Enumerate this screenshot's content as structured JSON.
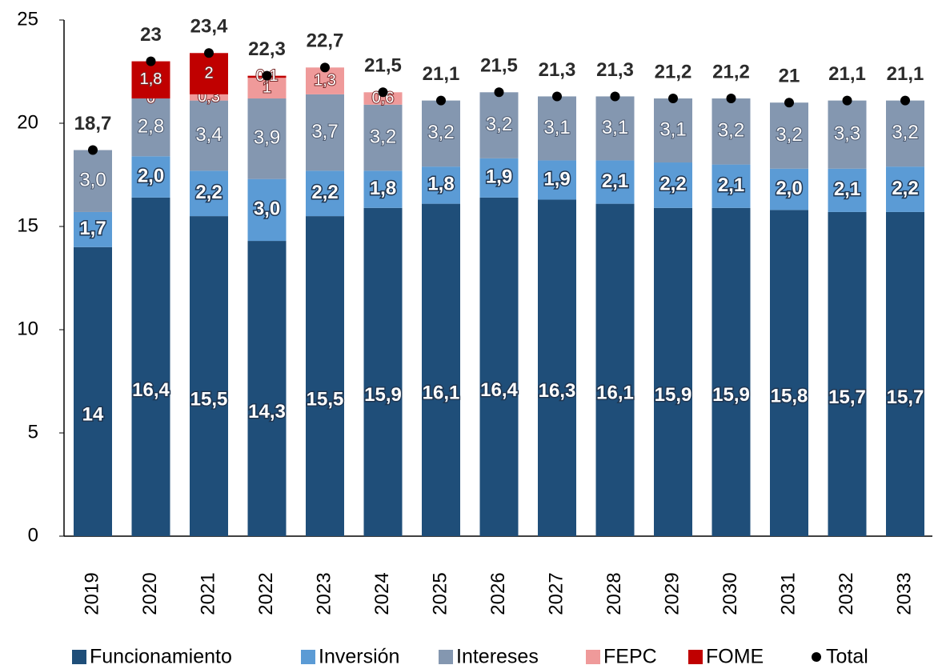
{
  "chart_data": {
    "type": "bar",
    "stacked": true,
    "categories": [
      "2019",
      "2020",
      "2021",
      "2022",
      "2023",
      "2024",
      "2025",
      "2026",
      "2027",
      "2028",
      "2029",
      "2030",
      "2031",
      "2032",
      "2033"
    ],
    "series": [
      {
        "name": "Funcionamiento",
        "color": "#1f4e79",
        "values": [
          14,
          16.4,
          15.5,
          14.3,
          15.5,
          15.9,
          16.1,
          16.4,
          16.3,
          16.1,
          15.9,
          15.9,
          15.8,
          15.7,
          15.7
        ],
        "value_labels": [
          "14",
          "16,4",
          "15,5",
          "14,3",
          "15,5",
          "15,9",
          "16,1",
          "16,4",
          "16,3",
          "16,1",
          "15,9",
          "15,9",
          "15,8",
          "15,7",
          "15,7"
        ]
      },
      {
        "name": "Inversión",
        "color": "#5b9bd5",
        "values": [
          1.7,
          2.0,
          2.2,
          3.0,
          2.2,
          1.8,
          1.8,
          1.9,
          1.9,
          2.1,
          2.2,
          2.1,
          2.0,
          2.1,
          2.2
        ],
        "value_labels": [
          "1,7",
          "2,0",
          "2,2",
          "3,0",
          "2,2",
          "1,8",
          "1,8",
          "1,9",
          "1,9",
          "2,1",
          "2,2",
          "2,1",
          "2,0",
          "2,1",
          "2,2"
        ]
      },
      {
        "name": "Intereses",
        "color": "#8497b0",
        "values": [
          3.0,
          2.8,
          3.4,
          3.9,
          3.7,
          3.2,
          3.2,
          3.2,
          3.1,
          3.1,
          3.1,
          3.2,
          3.2,
          3.3,
          3.2
        ],
        "value_labels": [
          "3,0",
          "2,8",
          "3,4",
          "3,9",
          "3,7",
          "3,2",
          "3,2",
          "3,2",
          "3,1",
          "3,1",
          "3,1",
          "3,2",
          "3,2",
          "3,3",
          "3,2"
        ]
      },
      {
        "name": "FEPC",
        "color": "#ef9a9a",
        "values": [
          null,
          0,
          0.3,
          1,
          1.3,
          0.6,
          null,
          null,
          null,
          null,
          null,
          null,
          null,
          null,
          null
        ],
        "value_labels": [
          null,
          "0",
          "0,3",
          "1",
          "1,3",
          "0,6",
          null,
          null,
          null,
          null,
          null,
          null,
          null,
          null,
          null
        ]
      },
      {
        "name": "FOME",
        "color": "#c00000",
        "values": [
          null,
          1.8,
          2,
          0.1,
          null,
          null,
          null,
          null,
          null,
          null,
          null,
          null,
          null,
          null,
          null
        ],
        "value_labels": [
          null,
          "1,8",
          "2",
          "0,1",
          null,
          null,
          null,
          null,
          null,
          null,
          null,
          null,
          null,
          null,
          null
        ]
      },
      {
        "name": "Total",
        "color": "#000000",
        "type": "scatter",
        "values": [
          18.7,
          23,
          23.4,
          22.3,
          22.7,
          21.5,
          21.1,
          21.5,
          21.3,
          21.3,
          21.2,
          21.2,
          21,
          21.1,
          21.1
        ],
        "value_labels": [
          "18,7",
          "23",
          "23,4",
          "22,3",
          "22,7",
          "21,5",
          "21,1",
          "21,5",
          "21,3",
          "21,3",
          "21,2",
          "21,2",
          "21",
          "21,1",
          "21,1"
        ]
      }
    ],
    "ylim": [
      0,
      25
    ],
    "yticks": [
      0,
      5,
      10,
      15,
      20,
      25
    ],
    "grid": false,
    "legend": "bottom"
  }
}
